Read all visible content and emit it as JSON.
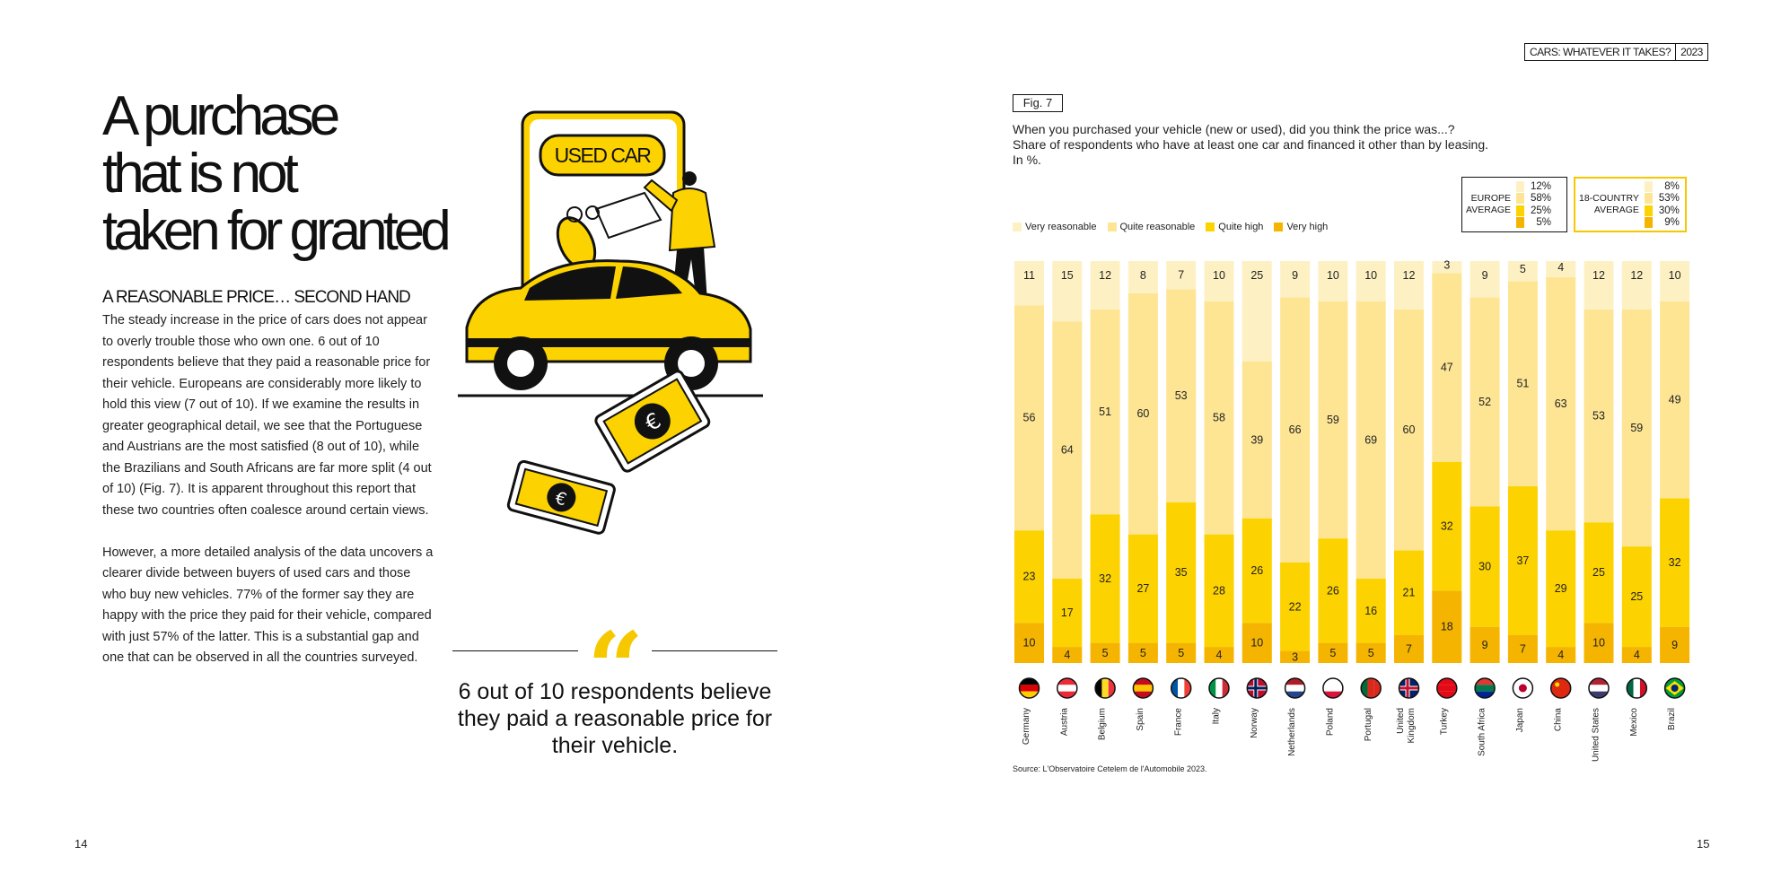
{
  "left_page": {
    "headline_lines": [
      "A purchase",
      "that is not",
      "taken for granted"
    ],
    "subhead": "A REASONABLE PRICE… SECOND HAND",
    "paragraph_1": "The steady increase in the price of cars does not appear to overly trouble those who own one. 6 out of 10 respondents believe that they paid a reasonable price for their vehicle. Europeans are considerably more likely to hold this view (7 out of 10). If we examine the results in greater geographical detail, we see that the Portuguese and Austrians are the most satisfied (8 out of 10), while the Brazilians and South Africans are far more split (4 out of 10) (Fig. 7). It is apparent throughout this report that these two countries often coalesce around certain views.",
    "paragraph_2": "However, a more detailed analysis of the data uncovers a clearer divide between buyers of used cars and those who buy new vehicles. 77% of the former say they are happy with the price they paid for their vehicle, compared with just 57% of the latter. This is a substantial gap and one that can be observed in all the countries surveyed.",
    "illustration_sign": "USED CAR",
    "quote_mark": "“",
    "quote": "6 out of 10 respondents believe they paid a reasonable price for their vehicle.",
    "page_number": "14"
  },
  "right_page": {
    "report_title": "CARS: WHATEVER IT TAKES?",
    "report_year": "2023",
    "fig_label": "Fig. 7",
    "question": "When you purchased your vehicle (new or used), did you think the price was...?",
    "subtitle": "Share of respondents who have at least one car and financed it other than by leasing.",
    "unit": "In %.",
    "europe_average": {
      "label_line1": "EUROPE",
      "label_line2": "AVERAGE",
      "values": [
        "12%",
        "58%",
        "25%",
        "5%"
      ]
    },
    "country18_average": {
      "label_line1": "18-COUNTRY",
      "label_line2": "AVERAGE",
      "values": [
        "8%",
        "53%",
        "30%",
        "9%"
      ]
    },
    "source": "Source: L'Observatoire Cetelem de l'Automobile 2023.",
    "page_number": "15"
  },
  "colors": {
    "very_reasonable": "#fdf1c4",
    "quite_reasonable": "#fde594",
    "quite_high": "#fcd200",
    "very_high": "#f5b400",
    "accent_yellow": "#f5c800"
  },
  "chart_data": {
    "type": "bar",
    "stacked": true,
    "normalized_to": 100,
    "categories": [
      "Germany",
      "Austria",
      "Belgium",
      "Spain",
      "France",
      "Italy",
      "Norway",
      "Netherlands",
      "Poland",
      "Portugal",
      "United Kingdom",
      "Turkey",
      "South Africa",
      "Japan",
      "China",
      "United States",
      "Mexico",
      "Brazil"
    ],
    "series": [
      {
        "name": "Very reasonable",
        "color": "#fdf1c4",
        "values": [
          11,
          15,
          12,
          8,
          7,
          10,
          25,
          9,
          10,
          10,
          12,
          3,
          9,
          5,
          4,
          12,
          12,
          10
        ]
      },
      {
        "name": "Quite reasonable",
        "color": "#fde594",
        "values": [
          56,
          64,
          51,
          60,
          53,
          58,
          39,
          66,
          59,
          69,
          60,
          47,
          52,
          51,
          63,
          53,
          59,
          49
        ]
      },
      {
        "name": "Quite high",
        "color": "#fcd200",
        "values": [
          23,
          17,
          32,
          27,
          35,
          28,
          26,
          22,
          26,
          16,
          21,
          32,
          30,
          37,
          29,
          25,
          25,
          32
        ]
      },
      {
        "name": "Very high",
        "color": "#f5b400",
        "values": [
          10,
          4,
          5,
          5,
          5,
          4,
          10,
          3,
          5,
          5,
          7,
          18,
          9,
          7,
          4,
          10,
          4,
          9
        ]
      }
    ],
    "flag_icons": [
      "germany-flag-icon",
      "austria-flag-icon",
      "belgium-flag-icon",
      "spain-flag-icon",
      "france-flag-icon",
      "italy-flag-icon",
      "norway-flag-icon",
      "netherlands-flag-icon",
      "poland-flag-icon",
      "portugal-flag-icon",
      "united-kingdom-flag-icon",
      "turkey-flag-icon",
      "south-africa-flag-icon",
      "japan-flag-icon",
      "china-flag-icon",
      "united-states-flag-icon",
      "mexico-flag-icon",
      "brazil-flag-icon"
    ],
    "legend_position": "top-left",
    "grid": false,
    "data_labels": true
  }
}
